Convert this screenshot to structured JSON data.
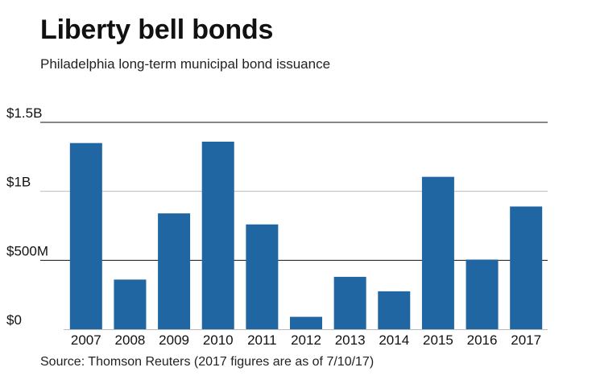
{
  "header": {
    "title": "Liberty bell bonds",
    "subtitle": "Philadelphia long-term municipal bond issuance"
  },
  "footer": {
    "source": "Source: Thomson Reuters (2017 figures are as of 7/10/17)"
  },
  "colors": {
    "bar": "#1f66a3",
    "gridline_major": "#111111",
    "gridline_minor": "#bbbbbb"
  },
  "chart_data": {
    "type": "bar",
    "title": "Liberty bell bonds",
    "subtitle": "Philadelphia long-term municipal bond issuance",
    "xlabel": "",
    "ylabel": "",
    "unit": "$ millions",
    "categories": [
      "2007",
      "2008",
      "2009",
      "2010",
      "2011",
      "2012",
      "2013",
      "2014",
      "2015",
      "2016",
      "2017"
    ],
    "values": [
      1350,
      360,
      840,
      1360,
      760,
      90,
      380,
      275,
      1105,
      505,
      890
    ],
    "ylim": [
      0,
      1500
    ],
    "yticks": [
      0,
      500,
      1000,
      1500
    ],
    "ytick_labels": [
      "$0",
      "$500M",
      "$1B",
      "$1.5B"
    ],
    "grid": true,
    "legend": "none"
  }
}
